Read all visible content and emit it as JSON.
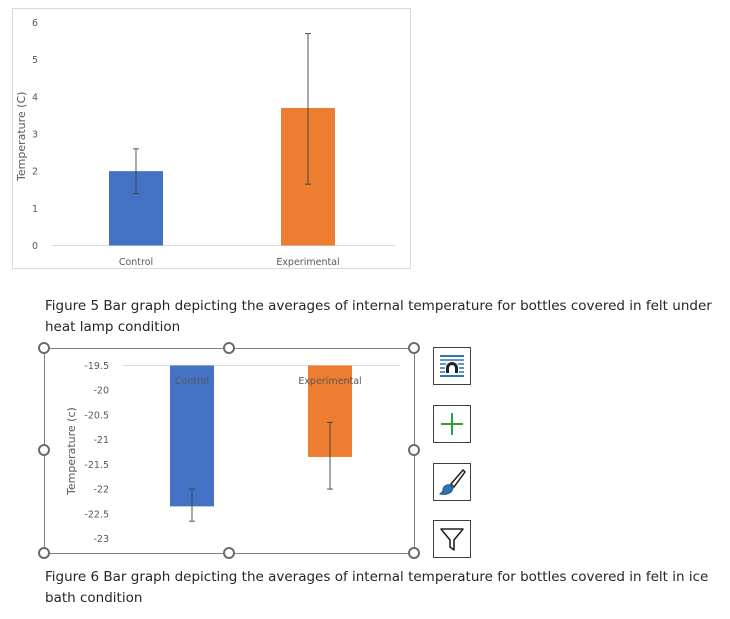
{
  "chart_data": [
    {
      "type": "bar",
      "title": "",
      "xlabel": "",
      "ylabel": "Temperature (C)",
      "categories": [
        "Control",
        "Experimental"
      ],
      "values": [
        2.0,
        3.7
      ],
      "error_low": [
        1.4,
        1.65
      ],
      "error_high": [
        2.6,
        5.7
      ],
      "ylim": [
        0,
        6
      ],
      "yticks": [
        "0",
        "1",
        "2",
        "3",
        "4",
        "5",
        "6"
      ],
      "colors": [
        "#4472c4",
        "#ed7d31"
      ],
      "grid": false
    },
    {
      "type": "bar",
      "title": "",
      "xlabel": "",
      "ylabel": "Temperature (c)",
      "categories": [
        "Control",
        "Experimental"
      ],
      "values": [
        -22.35,
        -21.35
      ],
      "error_low": [
        -22.65,
        -22.0
      ],
      "error_high": [
        -22.0,
        -20.65
      ],
      "ylim": [
        -23,
        -19.5
      ],
      "yticks": [
        "-19.5",
        "-20",
        "-20.5",
        "-21",
        "-21.5",
        "-22",
        "-22.5",
        "-23"
      ],
      "colors": [
        "#4472c4",
        "#ed7d31"
      ],
      "grid": false
    }
  ],
  "captions": {
    "fig5": "Figure 5 Bar graph depicting the averages of internal temperature for bottles covered in felt under heat lamp condition",
    "fig6": "Figure 6 Bar graph depicting the averages of internal temperature for bottles covered in felt in ice bath condition"
  },
  "icons": {
    "layout": "layout-options-icon",
    "elements": "chart-elements-icon",
    "styles": "chart-styles-icon",
    "filters": "chart-filters-icon"
  }
}
